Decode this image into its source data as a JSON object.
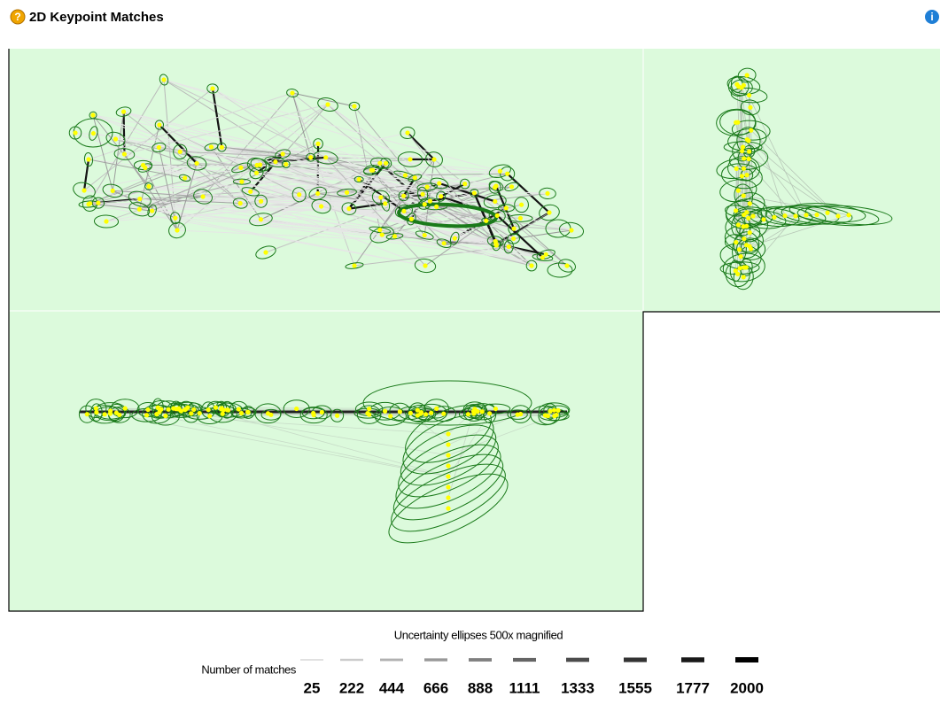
{
  "header": {
    "title": "2D Keypoint Matches"
  },
  "caption": "Uncertainty ellipses 500x magnified",
  "legend": {
    "label": "Number of matches",
    "values": [
      25,
      222,
      444,
      666,
      888,
      1111,
      1333,
      1555,
      1777,
      2000
    ]
  }
}
